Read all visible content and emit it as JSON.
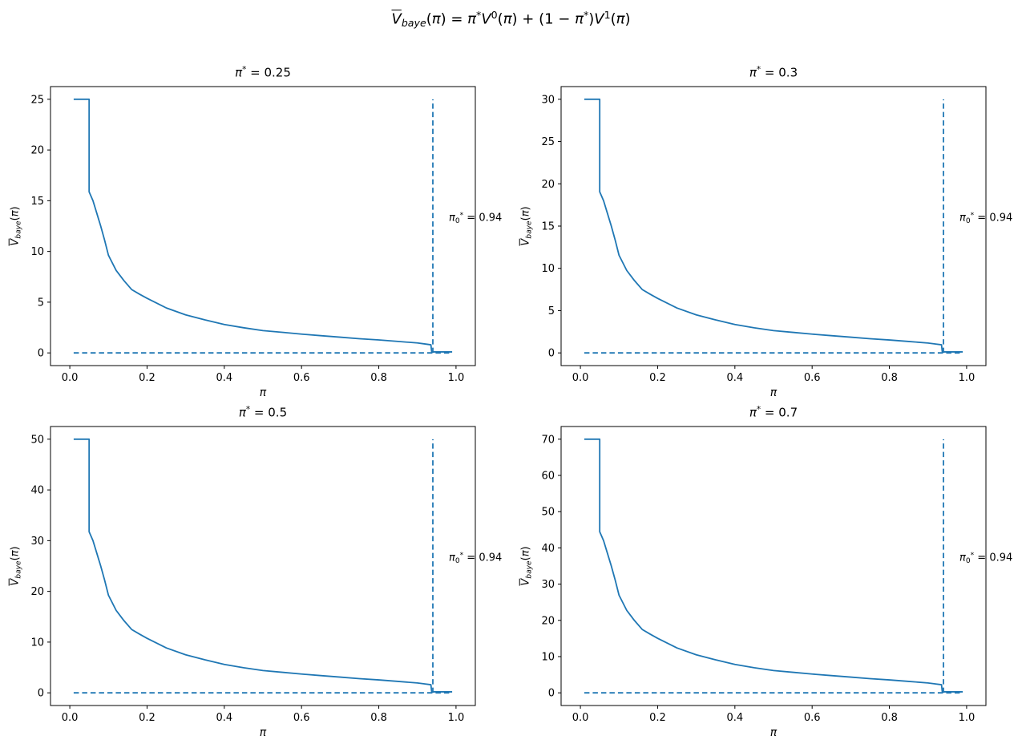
{
  "colors": {
    "line": "#1f77b4",
    "dashed": "#1f77b4",
    "spine": "#000000",
    "text": "#000000",
    "background": "#ffffff"
  },
  "figure_title_text": "V̄_baye(π) = π*V⁰(π) + (1 − π*)V¹(π)",
  "figure_title_segments": [
    {
      "t": "V",
      "s": "io"
    },
    {
      "t": "baye",
      "s": "isub"
    },
    {
      "t": "(",
      "s": ""
    },
    {
      "t": "π",
      "s": "i"
    },
    {
      "t": ") = ",
      "s": ""
    },
    {
      "t": "π",
      "s": "i"
    },
    {
      "t": "*",
      "s": "sup"
    },
    {
      "t": "V",
      "s": "i"
    },
    {
      "t": "0",
      "s": "sup"
    },
    {
      "t": "(",
      "s": ""
    },
    {
      "t": "π",
      "s": "i"
    },
    {
      "t": ") + (1 − ",
      "s": ""
    },
    {
      "t": "π",
      "s": "i"
    },
    {
      "t": "*",
      "s": "sup"
    },
    {
      "t": ")",
      "s": ""
    },
    {
      "t": "V",
      "s": "i"
    },
    {
      "t": "1",
      "s": "sup"
    },
    {
      "t": "(",
      "s": ""
    },
    {
      "t": "π",
      "s": "i"
    },
    {
      "t": ")",
      "s": ""
    }
  ],
  "shared": {
    "xlabel_segments": [
      {
        "t": "π",
        "s": "i"
      }
    ],
    "ylabel_text": "V̄_baye(π)",
    "ylabel_segments": [
      {
        "t": "V",
        "s": "io"
      },
      {
        "t": "baye",
        "s": "isub"
      },
      {
        "t": "(",
        "s": ""
      },
      {
        "t": "π",
        "s": "i"
      },
      {
        "t": ")",
        "s": ""
      }
    ],
    "annotation_text": "π₀* = 0.94",
    "annotation_segments": [
      {
        "t": "π",
        "s": "i"
      },
      {
        "t": "0",
        "s": "sub"
      },
      {
        "t": "*",
        "s": "sup"
      },
      {
        "t": " = 0.94",
        "s": ""
      }
    ],
    "xlim": [
      -0.05,
      1.05
    ],
    "xticks": [
      0.0,
      0.2,
      0.4,
      0.6,
      0.8,
      1.0
    ],
    "grid": false,
    "legend": "none",
    "vline_x": 0.94,
    "hline_y": 0,
    "hline_span": [
      0.01,
      0.99
    ]
  },
  "chart_data": [
    {
      "type": "line",
      "title_text": "π* = 0.25",
      "title_segments": [
        {
          "t": "π",
          "s": "i"
        },
        {
          "t": "*",
          "s": "sup"
        },
        {
          "t": " = 0.25",
          "s": ""
        }
      ],
      "pi_star": 0.25,
      "ymax": 25,
      "ylim": [
        -1.25,
        26.25
      ],
      "yticks": [
        0,
        5,
        10,
        15,
        20,
        25
      ],
      "curve": {
        "x": [
          0.01,
          0.05,
          0.05,
          0.06,
          0.07,
          0.08,
          0.09,
          0.1,
          0.105,
          0.12,
          0.14,
          0.16,
          0.18,
          0.2,
          0.25,
          0.3,
          0.35,
          0.4,
          0.45,
          0.5,
          0.55,
          0.6,
          0.65,
          0.7,
          0.75,
          0.8,
          0.85,
          0.9,
          0.92,
          0.935,
          0.937,
          0.99
        ],
        "y": [
          25,
          25,
          15.88,
          15,
          13.75,
          12.5,
          11.13,
          9.63,
          9.25,
          8.13,
          7.13,
          6.25,
          5.8,
          5.38,
          4.43,
          3.75,
          3.25,
          2.8,
          2.48,
          2.2,
          2.03,
          1.85,
          1.7,
          1.55,
          1.4,
          1.28,
          1.13,
          0.98,
          0.88,
          0.8,
          0.1,
          0.1
        ]
      }
    },
    {
      "type": "line",
      "title_text": "π* = 0.3",
      "title_segments": [
        {
          "t": "π",
          "s": "i"
        },
        {
          "t": "*",
          "s": "sup"
        },
        {
          "t": " = 0.3",
          "s": ""
        }
      ],
      "pi_star": 0.3,
      "ymax": 30,
      "ylim": [
        -1.5,
        31.5
      ],
      "yticks": [
        0,
        5,
        10,
        15,
        20,
        25,
        30
      ],
      "curve": {
        "x": [
          0.01,
          0.05,
          0.05,
          0.06,
          0.07,
          0.08,
          0.09,
          0.1,
          0.105,
          0.12,
          0.14,
          0.16,
          0.18,
          0.2,
          0.25,
          0.3,
          0.35,
          0.4,
          0.45,
          0.5,
          0.55,
          0.6,
          0.65,
          0.7,
          0.75,
          0.8,
          0.85,
          0.9,
          0.92,
          0.935,
          0.937,
          0.99
        ],
        "y": [
          30,
          30,
          19.05,
          18,
          16.5,
          15,
          13.35,
          11.55,
          11.1,
          9.75,
          8.55,
          7.5,
          6.96,
          6.45,
          5.31,
          4.5,
          3.9,
          3.36,
          2.97,
          2.64,
          2.43,
          2.22,
          2.04,
          1.86,
          1.68,
          1.53,
          1.35,
          1.17,
          1.05,
          0.96,
          0.12,
          0.12
        ]
      }
    },
    {
      "type": "line",
      "title_text": "π* = 0.5",
      "title_segments": [
        {
          "t": "π",
          "s": "i"
        },
        {
          "t": "*",
          "s": "sup"
        },
        {
          "t": " = 0.5",
          "s": ""
        }
      ],
      "pi_star": 0.5,
      "ymax": 50,
      "ylim": [
        -2.5,
        52.5
      ],
      "yticks": [
        0,
        10,
        20,
        30,
        40,
        50
      ],
      "curve": {
        "x": [
          0.01,
          0.05,
          0.05,
          0.06,
          0.07,
          0.08,
          0.09,
          0.1,
          0.105,
          0.12,
          0.14,
          0.16,
          0.18,
          0.2,
          0.25,
          0.3,
          0.35,
          0.4,
          0.45,
          0.5,
          0.55,
          0.6,
          0.65,
          0.7,
          0.75,
          0.8,
          0.85,
          0.9,
          0.92,
          0.935,
          0.937,
          0.99
        ],
        "y": [
          50,
          50,
          31.75,
          30,
          27.5,
          25,
          22.25,
          19.25,
          18.5,
          16.25,
          14.25,
          12.5,
          11.6,
          10.75,
          8.85,
          7.5,
          6.5,
          5.6,
          4.95,
          4.4,
          4.05,
          3.7,
          3.4,
          3.1,
          2.8,
          2.55,
          2.25,
          1.95,
          1.75,
          1.6,
          0.2,
          0.2
        ]
      }
    },
    {
      "type": "line",
      "title_text": "π* = 0.7",
      "title_segments": [
        {
          "t": "π",
          "s": "i"
        },
        {
          "t": "*",
          "s": "sup"
        },
        {
          "t": " = 0.7",
          "s": ""
        }
      ],
      "pi_star": 0.7,
      "ymax": 70,
      "ylim": [
        -3.5,
        73.5
      ],
      "yticks": [
        0,
        10,
        20,
        30,
        40,
        50,
        60,
        70
      ],
      "curve": {
        "x": [
          0.01,
          0.05,
          0.05,
          0.06,
          0.07,
          0.08,
          0.09,
          0.1,
          0.105,
          0.12,
          0.14,
          0.16,
          0.18,
          0.2,
          0.25,
          0.3,
          0.35,
          0.4,
          0.45,
          0.5,
          0.55,
          0.6,
          0.65,
          0.7,
          0.75,
          0.8,
          0.85,
          0.9,
          0.92,
          0.935,
          0.937,
          0.99
        ],
        "y": [
          70,
          70,
          44.45,
          42,
          38.5,
          35,
          31.15,
          26.95,
          25.9,
          22.75,
          19.95,
          17.5,
          16.24,
          15.05,
          12.39,
          10.5,
          9.1,
          7.84,
          6.93,
          6.16,
          5.67,
          5.18,
          4.76,
          4.34,
          3.92,
          3.57,
          3.15,
          2.73,
          2.45,
          2.24,
          0.28,
          0.28
        ]
      }
    }
  ]
}
